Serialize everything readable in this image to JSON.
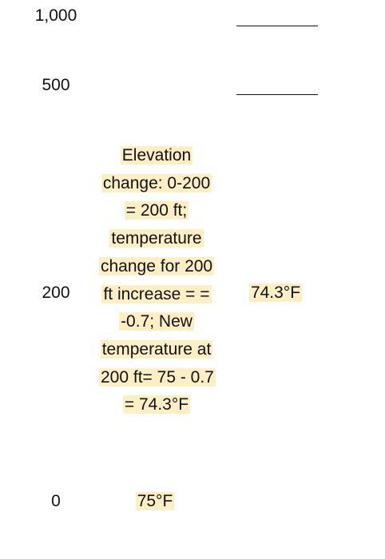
{
  "rows": [
    {
      "elevation": "1,000",
      "calculation": "",
      "temperature": ""
    },
    {
      "elevation": "500",
      "calculation": "",
      "temperature": ""
    },
    {
      "elevation": "200",
      "calculation": "Elevation change: 0-200 = 200 ft; temperature change for 200 ft increase = = -0.7; New temperature at 200 ft= 75 - 0.7 = 74.3°F",
      "temperature": "74.3°F"
    },
    {
      "elevation": "0",
      "calculation": "75°F",
      "temperature": ""
    }
  ],
  "colors": {
    "highlight": "#fdefc3",
    "text": "#111111"
  }
}
